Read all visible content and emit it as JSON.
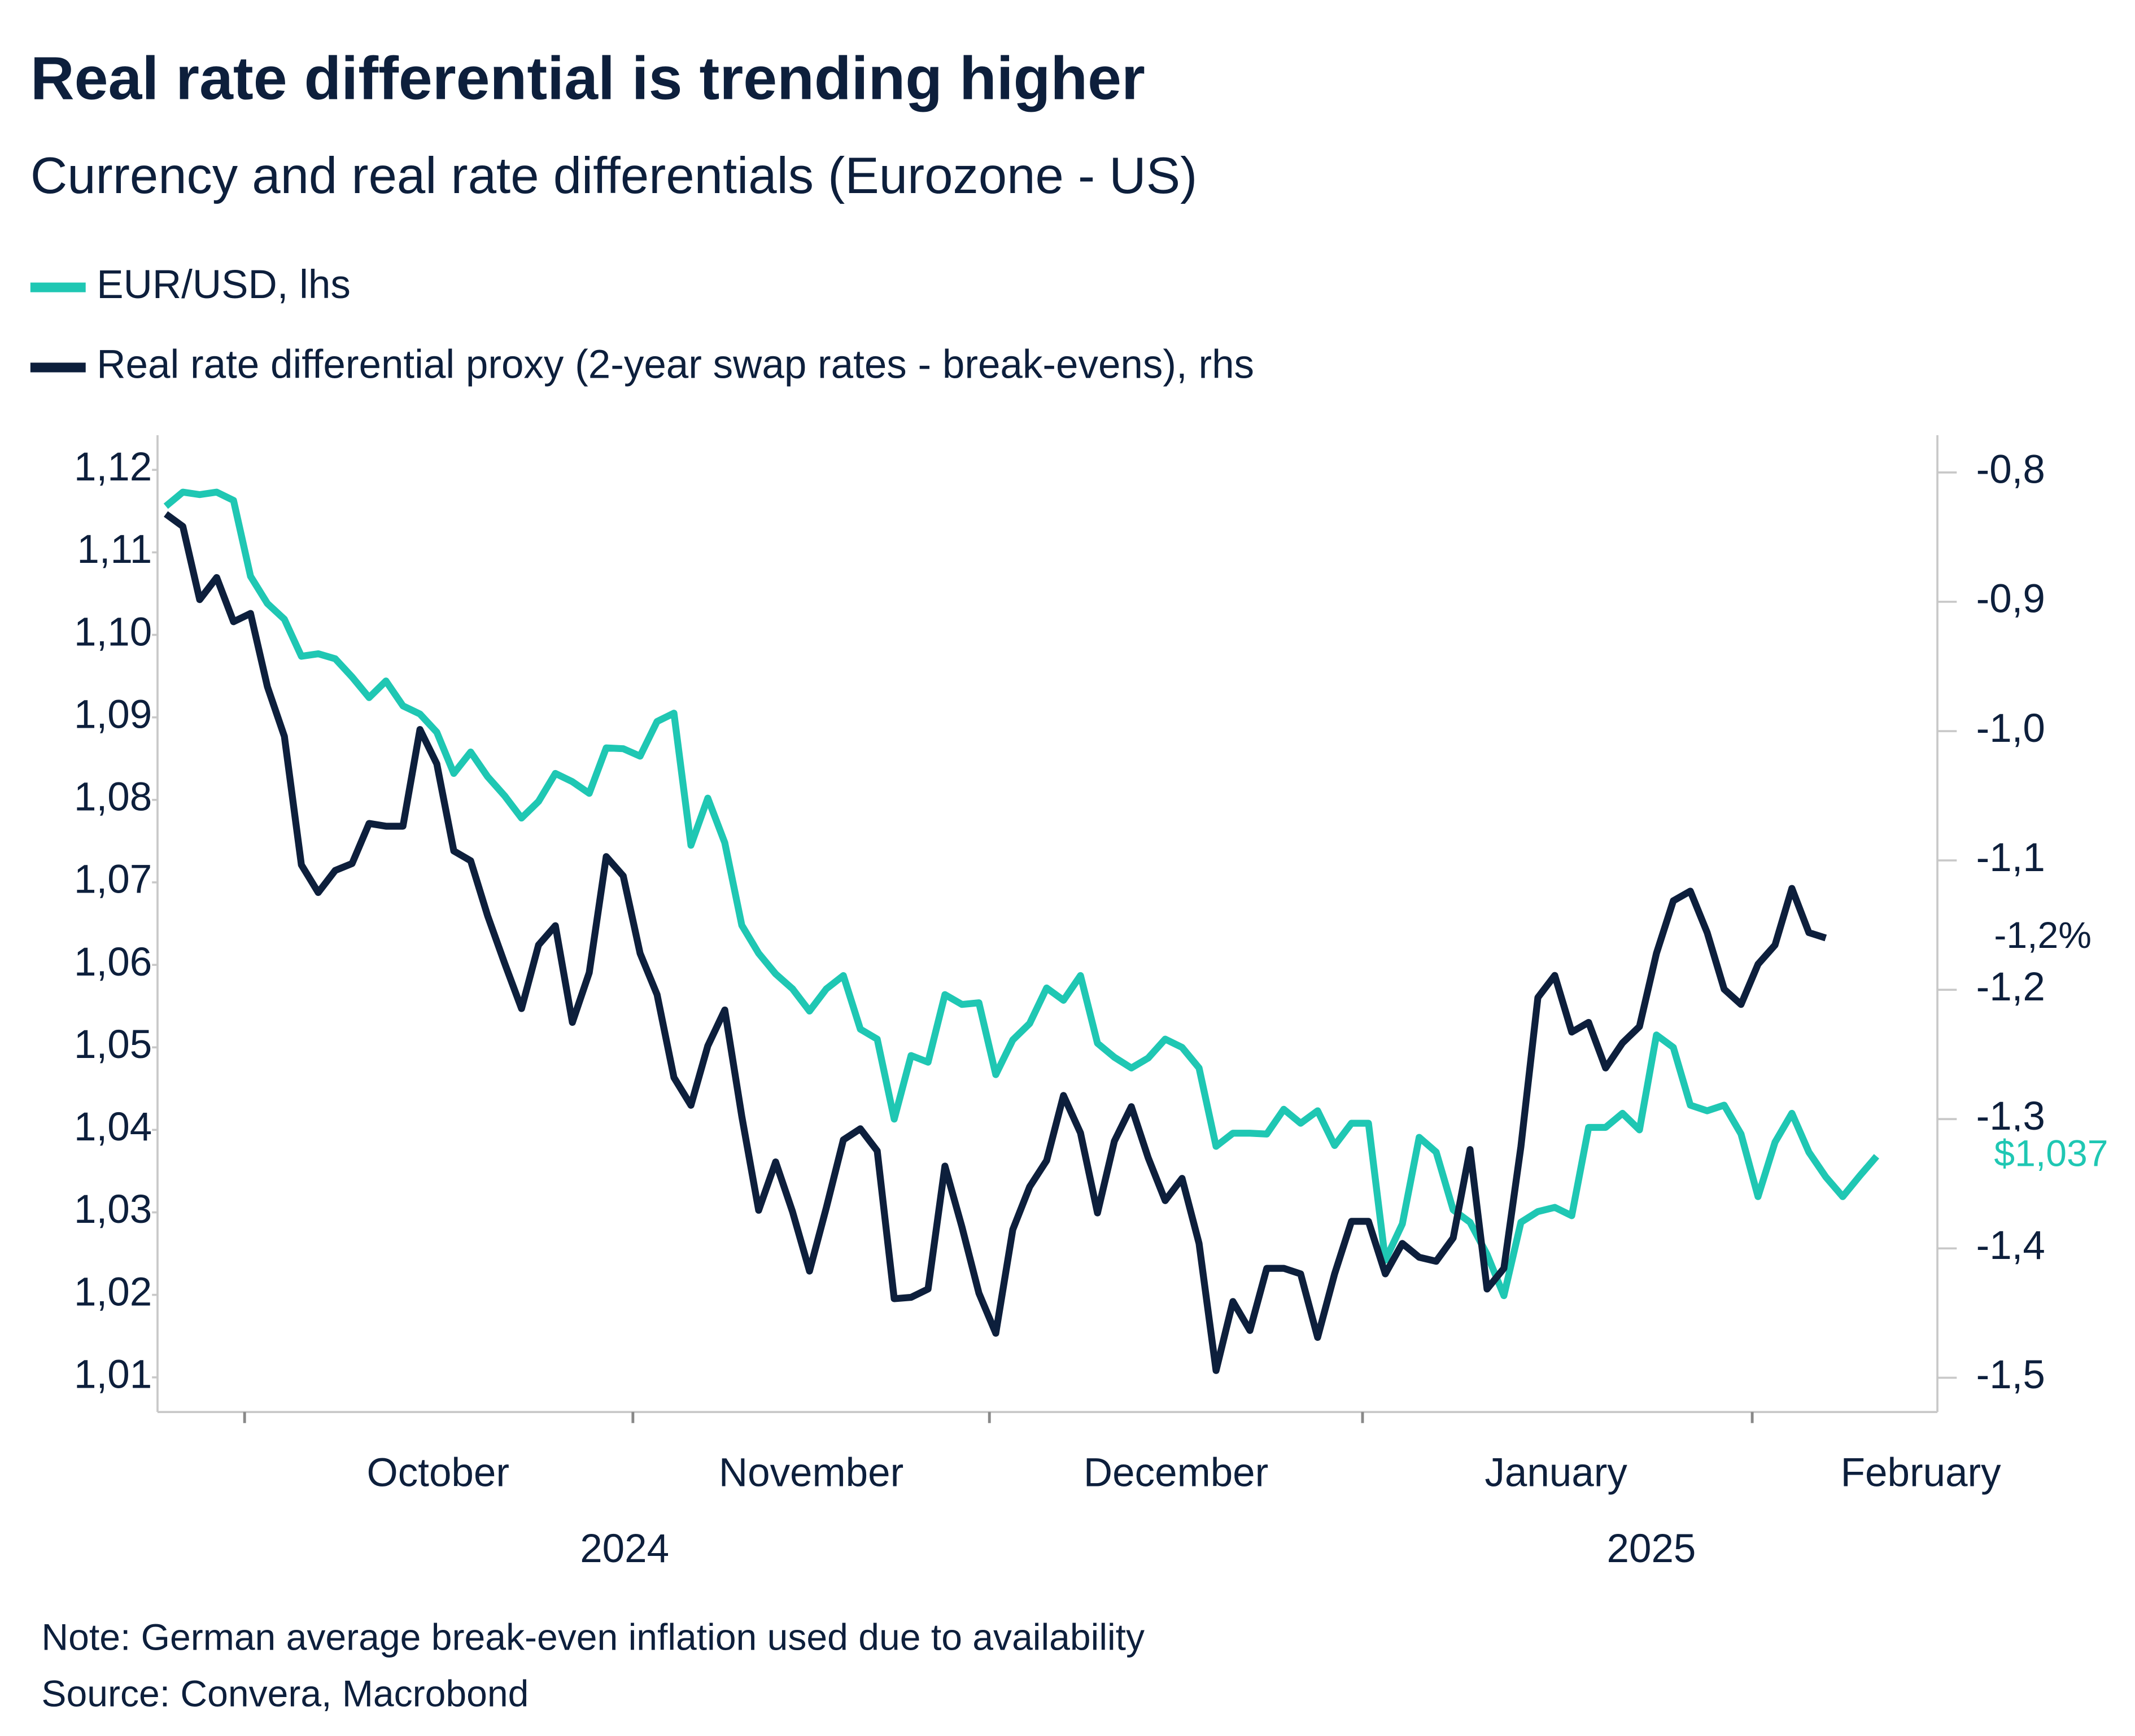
{
  "chart_data": {
    "type": "line",
    "title": "Real rate differential is trending higher",
    "subtitle": "Currency and real rate differentials (Eurozone - US)",
    "x_labels": [
      "October",
      "November",
      "December",
      "January",
      "February"
    ],
    "x_year_labels": [
      "2024",
      "2025"
    ],
    "ylim": [
      1.0058,
      1.1242
    ],
    "yticks": [
      {
        "value": 1.01,
        "label": "1,01"
      },
      {
        "value": 1.02,
        "label": "1,02"
      },
      {
        "value": 1.03,
        "label": "1,03"
      },
      {
        "value": 1.04,
        "label": "1,04"
      },
      {
        "value": 1.05,
        "label": "1,05"
      },
      {
        "value": 1.06,
        "label": "1,06"
      },
      {
        "value": 1.07,
        "label": "1,07"
      },
      {
        "value": 1.08,
        "label": "1,08"
      },
      {
        "value": 1.09,
        "label": "1,09"
      },
      {
        "value": 1.1,
        "label": "1,10"
      },
      {
        "value": 1.11,
        "label": "1,11"
      },
      {
        "value": 1.12,
        "label": "1,12"
      }
    ],
    "y2lim": [
      -1.5265,
      -0.7712
    ],
    "y2ticks": [
      {
        "value": -1.5,
        "label": "-1,5"
      },
      {
        "value": -1.4,
        "label": "-1,4"
      },
      {
        "value": -1.3,
        "label": "-1,3"
      },
      {
        "value": -1.2,
        "label": "-1,2"
      },
      {
        "value": -1.1,
        "label": "-1,1"
      },
      {
        "value": -1.0,
        "label": "-1,0"
      },
      {
        "value": -0.9,
        "label": "-0,9"
      },
      {
        "value": -0.8,
        "label": "-0,8"
      }
    ],
    "series": [
      {
        "name": "EUR/USD, lhs",
        "color": "#1fc7b3",
        "axis": "y",
        "values": [
          1.1156,
          1.1173,
          1.117,
          1.1173,
          1.1163,
          1.1071,
          1.1038,
          1.1019,
          1.0974,
          1.0977,
          1.0971,
          1.0949,
          1.0924,
          1.0944,
          1.0914,
          1.0904,
          1.0882,
          1.0832,
          1.0858,
          1.0828,
          1.0805,
          1.0778,
          1.0798,
          1.0832,
          1.0822,
          1.0808,
          1.0863,
          1.0862,
          1.0853,
          1.0895,
          1.0905,
          1.0745,
          1.0802,
          1.0748,
          1.0648,
          1.0614,
          1.0589,
          1.0571,
          1.0544,
          1.0571,
          1.0587,
          1.0522,
          1.051,
          1.0413,
          1.049,
          1.0482,
          1.0564,
          1.0552,
          1.0554,
          1.0467,
          1.0509,
          1.0529,
          1.0572,
          1.0557,
          1.0587,
          1.0505,
          1.0488,
          1.0475,
          1.0487,
          1.051,
          1.05,
          1.0475,
          1.038,
          1.0396,
          1.0396,
          1.0395,
          1.0425,
          1.0408,
          1.0423,
          1.0381,
          1.0408,
          1.0408,
          1.0242,
          1.0286,
          1.0391,
          1.0373,
          1.0303,
          1.0288,
          1.0249,
          1.0199,
          1.0288,
          1.0301,
          1.0306,
          1.0296,
          1.0403,
          1.0403,
          1.042,
          1.04,
          1.0515,
          1.05,
          1.043,
          1.0423,
          1.043,
          1.0395,
          1.0319,
          1.0385,
          1.042,
          1.0373,
          1.0343,
          1.0319,
          1.0344,
          1.0368
        ],
        "value_labels": [
          null,
          null,
          null,
          null,
          null,
          null,
          null,
          null,
          null,
          null,
          null,
          null,
          null,
          null,
          null,
          null,
          null,
          null,
          null,
          null,
          null,
          null,
          null,
          null,
          null,
          null,
          null,
          null,
          null,
          null,
          null,
          null,
          null,
          null,
          null,
          null,
          null,
          null,
          null,
          null,
          null,
          null,
          null,
          null,
          null,
          null,
          null,
          null,
          null,
          null,
          null,
          null,
          null,
          null,
          null,
          null,
          null,
          null,
          null,
          null,
          null,
          null,
          null,
          null,
          null,
          null,
          null,
          null,
          null,
          null,
          null,
          null,
          null,
          null,
          null,
          null,
          null,
          null,
          null,
          null,
          null,
          null,
          null,
          null,
          null,
          null,
          null,
          null,
          null,
          null,
          null,
          null,
          null,
          null,
          null,
          null,
          null,
          null,
          null,
          null,
          null,
          "$1,037"
        ]
      },
      {
        "name": "Real rate differential proxy (2-year swap rates - break-evens), rhs",
        "color": "#0d1f3c",
        "axis": "y2",
        "values": [
          -0.8321,
          -0.8417,
          -0.8983,
          -0.8812,
          -0.9154,
          -0.909,
          -0.9656,
          -1.0041,
          -1.1034,
          -1.1248,
          -1.1077,
          -1.1024,
          -1.0714,
          -1.0735,
          -1.0735,
          -0.9987,
          -1.0254,
          -1.0927,
          -1.1002,
          -1.1429,
          -1.1793,
          -1.2145,
          -1.1654,
          -1.1504,
          -1.2252,
          -1.1868,
          -1.097,
          -1.112,
          -1.1718,
          -1.2038,
          -1.2679,
          -1.2893,
          -1.2434,
          -1.2156,
          -1.2979,
          -1.3705,
          -1.3331,
          -1.3716,
          -1.4175,
          -1.3684,
          -1.316,
          -1.3075,
          -1.3246,
          -1.4389,
          -1.4378,
          -1.4314,
          -1.3363,
          -1.3833,
          -1.4346,
          -1.4656,
          -1.3855,
          -1.3524,
          -1.3321,
          -1.2818,
          -1.3107,
          -1.3726,
          -1.3171,
          -1.2904,
          -1.3299,
          -1.363,
          -1.3459,
          -1.3962,
          -1.4944,
          -1.441,
          -1.4635,
          -1.4154,
          -1.4154,
          -1.4197,
          -1.4688,
          -1.4197,
          -1.3791,
          -1.3791,
          -1.4197,
          -1.3962,
          -1.4068,
          -1.41,
          -1.3919,
          -1.3235,
          -1.4314,
          -1.4154,
          -1.3214,
          -1.206,
          -1.1889,
          -1.2327,
          -1.2252,
          -1.2605,
          -1.2412,
          -1.2284,
          -1.1718,
          -1.1312,
          -1.1237,
          -1.1558,
          -1.1996,
          -1.2113,
          -1.1803,
          -1.1654,
          -1.1216,
          -1.1558,
          -1.16,
          null,
          null,
          null
        ],
        "value_labels": [
          null,
          null,
          null,
          null,
          null,
          null,
          null,
          null,
          null,
          null,
          null,
          null,
          null,
          null,
          null,
          null,
          null,
          null,
          null,
          null,
          null,
          null,
          null,
          null,
          null,
          null,
          null,
          null,
          null,
          null,
          null,
          null,
          null,
          null,
          null,
          null,
          null,
          null,
          null,
          null,
          null,
          null,
          null,
          null,
          null,
          null,
          null,
          null,
          null,
          null,
          null,
          null,
          null,
          null,
          null,
          null,
          null,
          null,
          null,
          null,
          null,
          null,
          null,
          null,
          null,
          null,
          null,
          null,
          null,
          null,
          null,
          null,
          null,
          null,
          null,
          null,
          null,
          null,
          null,
          null,
          null,
          null,
          null,
          null,
          null,
          null,
          null,
          null,
          null,
          null,
          null,
          null,
          null,
          null,
          null,
          null,
          null,
          null,
          "-1,2%",
          null,
          null,
          null
        ]
      }
    ],
    "note": "Note: German average break-even inflation used due to availability",
    "source": "Source: Convera, Macrobond"
  }
}
